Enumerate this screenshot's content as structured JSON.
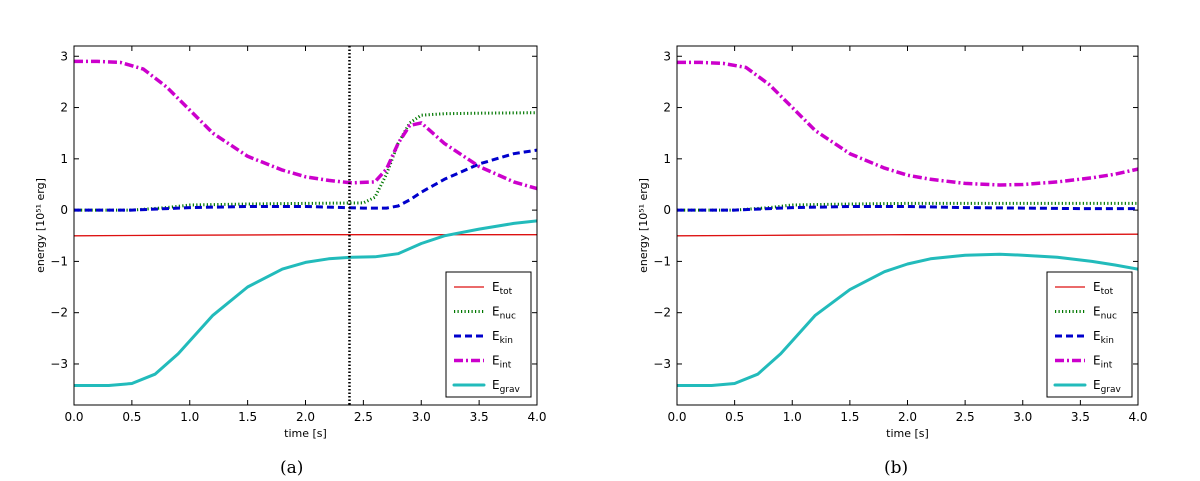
{
  "figure": {
    "panels": [
      {
        "caption": "(a)"
      },
      {
        "caption": "(b)"
      }
    ]
  },
  "chart_data": [
    {
      "type": "line",
      "panel": "(a)",
      "xlabel": "time [s]",
      "ylabel": "energy [10⁵¹ erg]",
      "xlim": [
        0.0,
        4.0
      ],
      "ylim": [
        -3.8,
        3.2
      ],
      "xticks": [
        "0.0",
        "0.5",
        "1.0",
        "1.5",
        "2.0",
        "2.5",
        "3.0",
        "3.5",
        "4.0"
      ],
      "yticks": [
        "−3",
        "−2",
        "−1",
        "0",
        "1",
        "2",
        "3"
      ],
      "vline": {
        "x": 2.38,
        "style": "dotted",
        "color": "#000000"
      },
      "legend": {
        "placement": "lower-right"
      },
      "series": [
        {
          "key": "tot",
          "name": "E_tot",
          "base": "E",
          "sub": "tot",
          "color": "#dd1111",
          "style": "solid",
          "x": [
            0.0,
            1.0,
            2.0,
            3.0,
            4.0
          ],
          "y": [
            -0.5,
            -0.49,
            -0.48,
            -0.48,
            -0.48
          ]
        },
        {
          "key": "nuc",
          "name": "E_nuc",
          "base": "E",
          "sub": "nuc",
          "color": "#007700",
          "style": "dotted",
          "x": [
            0.0,
            0.5,
            0.8,
            1.0,
            1.5,
            2.0,
            2.5,
            2.6,
            2.7,
            2.8,
            2.9,
            3.0,
            3.2,
            3.5,
            4.0
          ],
          "y": [
            0.0,
            0.0,
            0.05,
            0.1,
            0.12,
            0.13,
            0.14,
            0.25,
            0.7,
            1.3,
            1.7,
            1.85,
            1.88,
            1.89,
            1.9
          ]
        },
        {
          "key": "kin",
          "name": "E_kin",
          "base": "E",
          "sub": "kin",
          "color": "#0000cc",
          "style": "dashed",
          "x": [
            0.0,
            0.5,
            0.8,
            1.0,
            1.5,
            2.0,
            2.5,
            2.7,
            2.8,
            2.9,
            3.0,
            3.2,
            3.5,
            3.8,
            4.0
          ],
          "y": [
            0.0,
            0.0,
            0.03,
            0.05,
            0.07,
            0.07,
            0.04,
            0.04,
            0.08,
            0.2,
            0.35,
            0.6,
            0.9,
            1.1,
            1.17
          ]
        },
        {
          "key": "int",
          "name": "E_int",
          "base": "E",
          "sub": "int",
          "color": "#cc00cc",
          "style": "dashdot",
          "x": [
            0.0,
            0.2,
            0.4,
            0.6,
            0.8,
            1.0,
            1.2,
            1.5,
            1.8,
            2.0,
            2.2,
            2.4,
            2.6,
            2.7,
            2.8,
            2.9,
            3.0,
            3.2,
            3.5,
            3.8,
            4.0
          ],
          "y": [
            2.9,
            2.9,
            2.88,
            2.75,
            2.4,
            1.95,
            1.5,
            1.05,
            0.78,
            0.65,
            0.58,
            0.53,
            0.55,
            0.8,
            1.3,
            1.65,
            1.7,
            1.3,
            0.85,
            0.55,
            0.42
          ]
        },
        {
          "key": "grav",
          "name": "E_grav",
          "base": "E",
          "sub": "grav",
          "color": "#22bbbb",
          "style": "solid-thick",
          "x": [
            0.0,
            0.3,
            0.5,
            0.7,
            0.9,
            1.0,
            1.2,
            1.5,
            1.8,
            2.0,
            2.2,
            2.4,
            2.6,
            2.8,
            3.0,
            3.2,
            3.5,
            3.8,
            4.0
          ],
          "y": [
            -3.42,
            -3.42,
            -3.38,
            -3.2,
            -2.8,
            -2.55,
            -2.05,
            -1.5,
            -1.15,
            -1.02,
            -0.95,
            -0.92,
            -0.91,
            -0.85,
            -0.65,
            -0.5,
            -0.37,
            -0.26,
            -0.21
          ]
        }
      ]
    },
    {
      "type": "line",
      "panel": "(b)",
      "xlabel": "time [s]",
      "ylabel": "energy [10⁵¹ erg]",
      "xlim": [
        0.0,
        4.0
      ],
      "ylim": [
        -3.8,
        3.2
      ],
      "xticks": [
        "0.0",
        "0.5",
        "1.0",
        "1.5",
        "2.0",
        "2.5",
        "3.0",
        "3.5",
        "4.0"
      ],
      "yticks": [
        "−3",
        "−2",
        "−1",
        "0",
        "1",
        "2",
        "3"
      ],
      "legend": {
        "placement": "lower-right"
      },
      "series": [
        {
          "key": "tot",
          "name": "E_tot",
          "base": "E",
          "sub": "tot",
          "color": "#dd1111",
          "style": "solid",
          "x": [
            0.0,
            1.0,
            2.0,
            3.0,
            4.0
          ],
          "y": [
            -0.5,
            -0.49,
            -0.48,
            -0.48,
            -0.47
          ]
        },
        {
          "key": "nuc",
          "name": "E_nuc",
          "base": "E",
          "sub": "nuc",
          "color": "#007700",
          "style": "dotted",
          "x": [
            0.0,
            0.5,
            0.8,
            1.0,
            1.5,
            2.0,
            3.0,
            4.0
          ],
          "y": [
            0.0,
            0.0,
            0.05,
            0.1,
            0.12,
            0.13,
            0.13,
            0.13
          ]
        },
        {
          "key": "kin",
          "name": "E_kin",
          "base": "E",
          "sub": "kin",
          "color": "#0000cc",
          "style": "dashed",
          "x": [
            0.0,
            0.5,
            0.8,
            1.0,
            1.5,
            2.0,
            2.5,
            3.0,
            3.5,
            4.0
          ],
          "y": [
            0.0,
            0.0,
            0.03,
            0.05,
            0.07,
            0.07,
            0.05,
            0.04,
            0.03,
            0.03
          ]
        },
        {
          "key": "int",
          "name": "E_int",
          "base": "E",
          "sub": "int",
          "color": "#cc00cc",
          "style": "dashdot",
          "x": [
            0.0,
            0.2,
            0.4,
            0.6,
            0.8,
            1.0,
            1.2,
            1.5,
            1.8,
            2.0,
            2.2,
            2.5,
            2.8,
            3.0,
            3.3,
            3.6,
            3.8,
            4.0
          ],
          "y": [
            2.88,
            2.88,
            2.86,
            2.78,
            2.45,
            2.0,
            1.55,
            1.1,
            0.82,
            0.68,
            0.6,
            0.52,
            0.49,
            0.5,
            0.55,
            0.63,
            0.7,
            0.8
          ]
        },
        {
          "key": "grav",
          "name": "E_grav",
          "base": "E",
          "sub": "grav",
          "color": "#22bbbb",
          "style": "solid-thick",
          "x": [
            0.0,
            0.3,
            0.5,
            0.7,
            0.9,
            1.0,
            1.2,
            1.5,
            1.8,
            2.0,
            2.2,
            2.5,
            2.8,
            3.0,
            3.3,
            3.6,
            3.8,
            4.0
          ],
          "y": [
            -3.42,
            -3.42,
            -3.38,
            -3.2,
            -2.8,
            -2.55,
            -2.05,
            -1.55,
            -1.2,
            -1.05,
            -0.95,
            -0.88,
            -0.86,
            -0.88,
            -0.92,
            -1.0,
            -1.07,
            -1.15
          ]
        }
      ]
    }
  ]
}
